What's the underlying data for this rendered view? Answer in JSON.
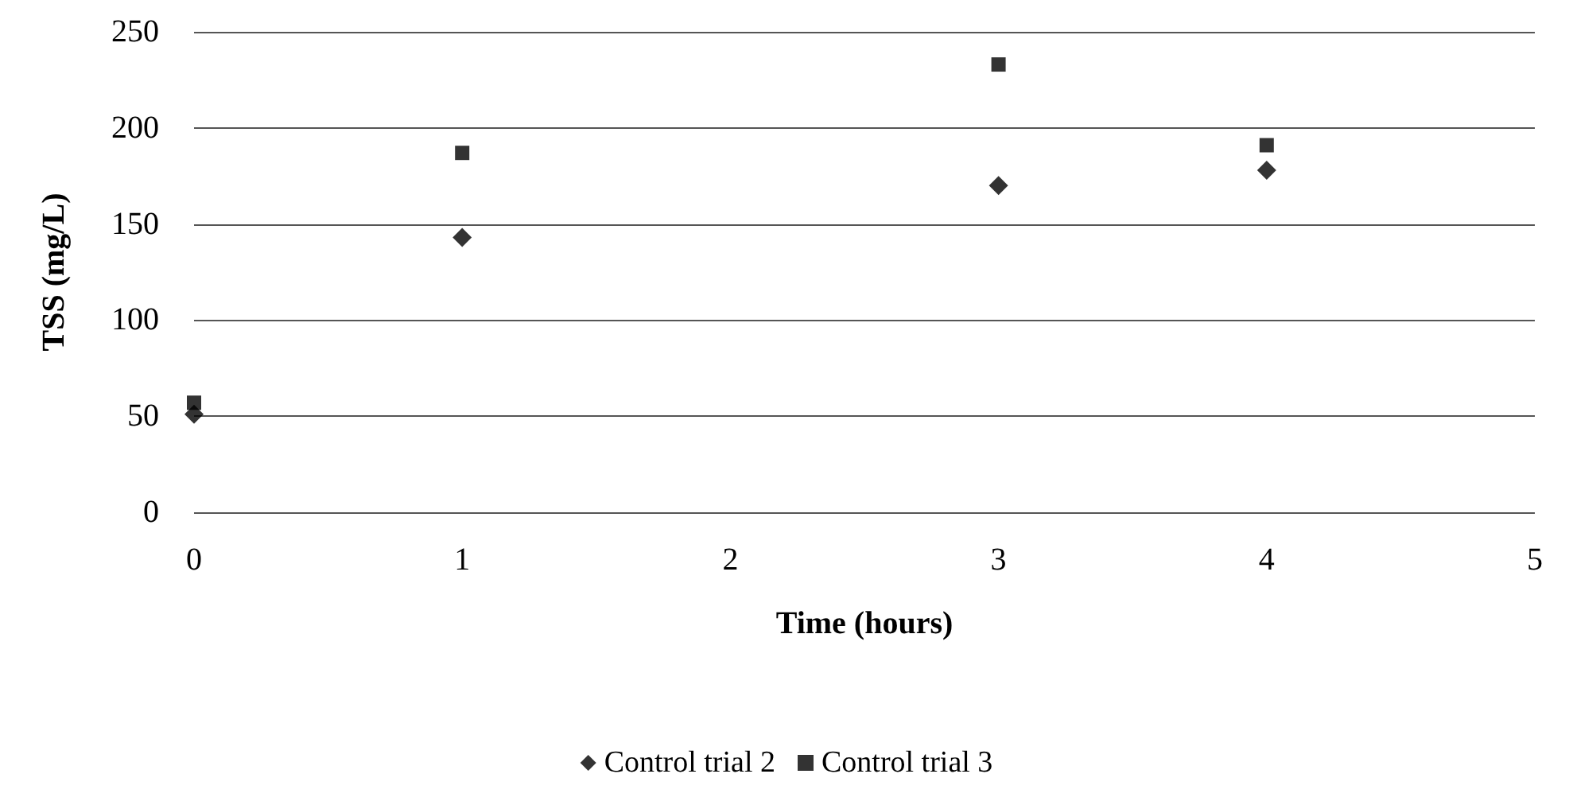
{
  "chart_data": {
    "type": "scatter",
    "xlabel": "Time (hours)",
    "ylabel": "TSS (mg/L)",
    "xlim": [
      0,
      5
    ],
    "xticks": [
      0,
      1,
      2,
      3,
      4,
      5
    ],
    "ylim": [
      0,
      250
    ],
    "yticks": [
      0,
      50,
      100,
      150,
      200,
      250
    ],
    "grid": "y",
    "legend": "bottom",
    "series": [
      {
        "name": "Control trial 2",
        "color": "#000000",
        "marker": "diamond",
        "x": [
          0,
          1,
          3,
          4
        ],
        "values": [
          51,
          143,
          170,
          178
        ]
      },
      {
        "name": "Control trial 3",
        "color": "#000000",
        "marker": "square",
        "x": [
          0,
          1,
          3,
          4
        ],
        "values": [
          57,
          187,
          233,
          191
        ]
      }
    ]
  }
}
